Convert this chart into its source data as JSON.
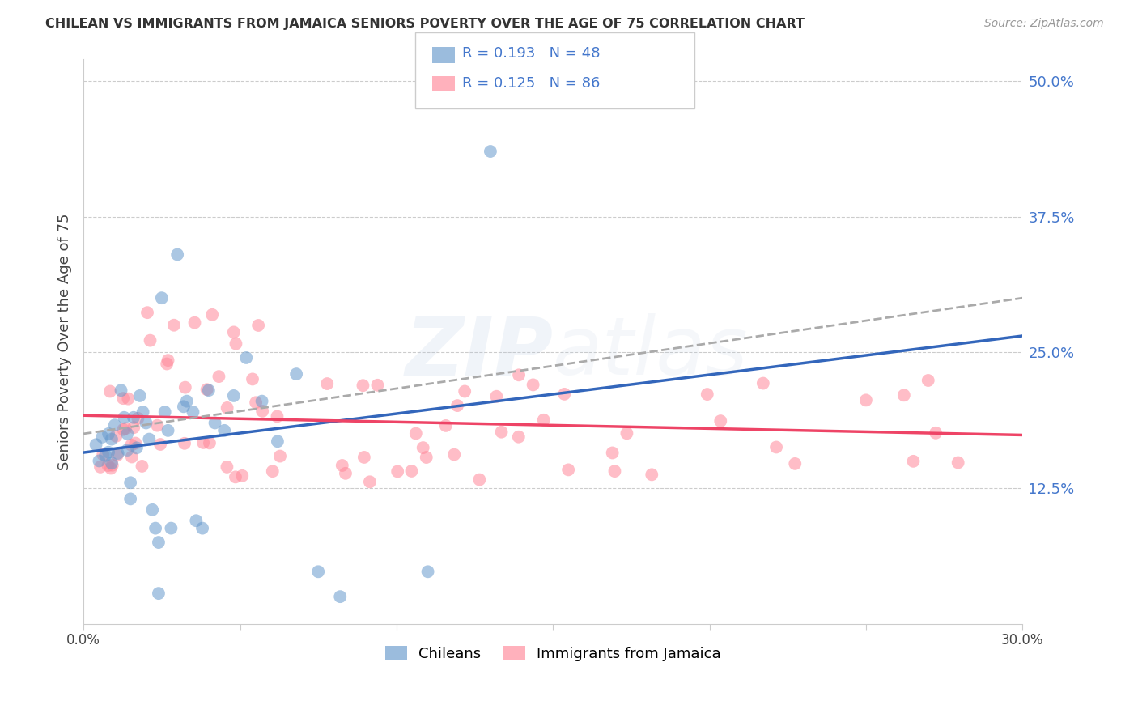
{
  "title": "CHILEAN VS IMMIGRANTS FROM JAMAICA SENIORS POVERTY OVER THE AGE OF 75 CORRELATION CHART",
  "source": "Source: ZipAtlas.com",
  "ylabel": "Seniors Poverty Over the Age of 75",
  "ytick_labels": [
    "50.0%",
    "37.5%",
    "25.0%",
    "12.5%"
  ],
  "ytick_values": [
    0.5,
    0.375,
    0.25,
    0.125
  ],
  "ylim": [
    0.0,
    0.52
  ],
  "xlim": [
    0.0,
    0.3
  ],
  "background_color": "#ffffff",
  "grid_color": "#cccccc",
  "legend_R1": "0.193",
  "legend_N1": "48",
  "legend_R2": "0.125",
  "legend_N2": "86",
  "chilean_color": "#6699cc",
  "jamaica_color": "#ff8899",
  "trendline_blue_color": "#3366bb",
  "trendline_pink_color": "#ee4466",
  "trendline_dashed_color": "#aaaaaa",
  "text_blue": "#4477cc",
  "chileans_label": "Chileans",
  "jamaica_label": "Immigrants from Jamaica"
}
